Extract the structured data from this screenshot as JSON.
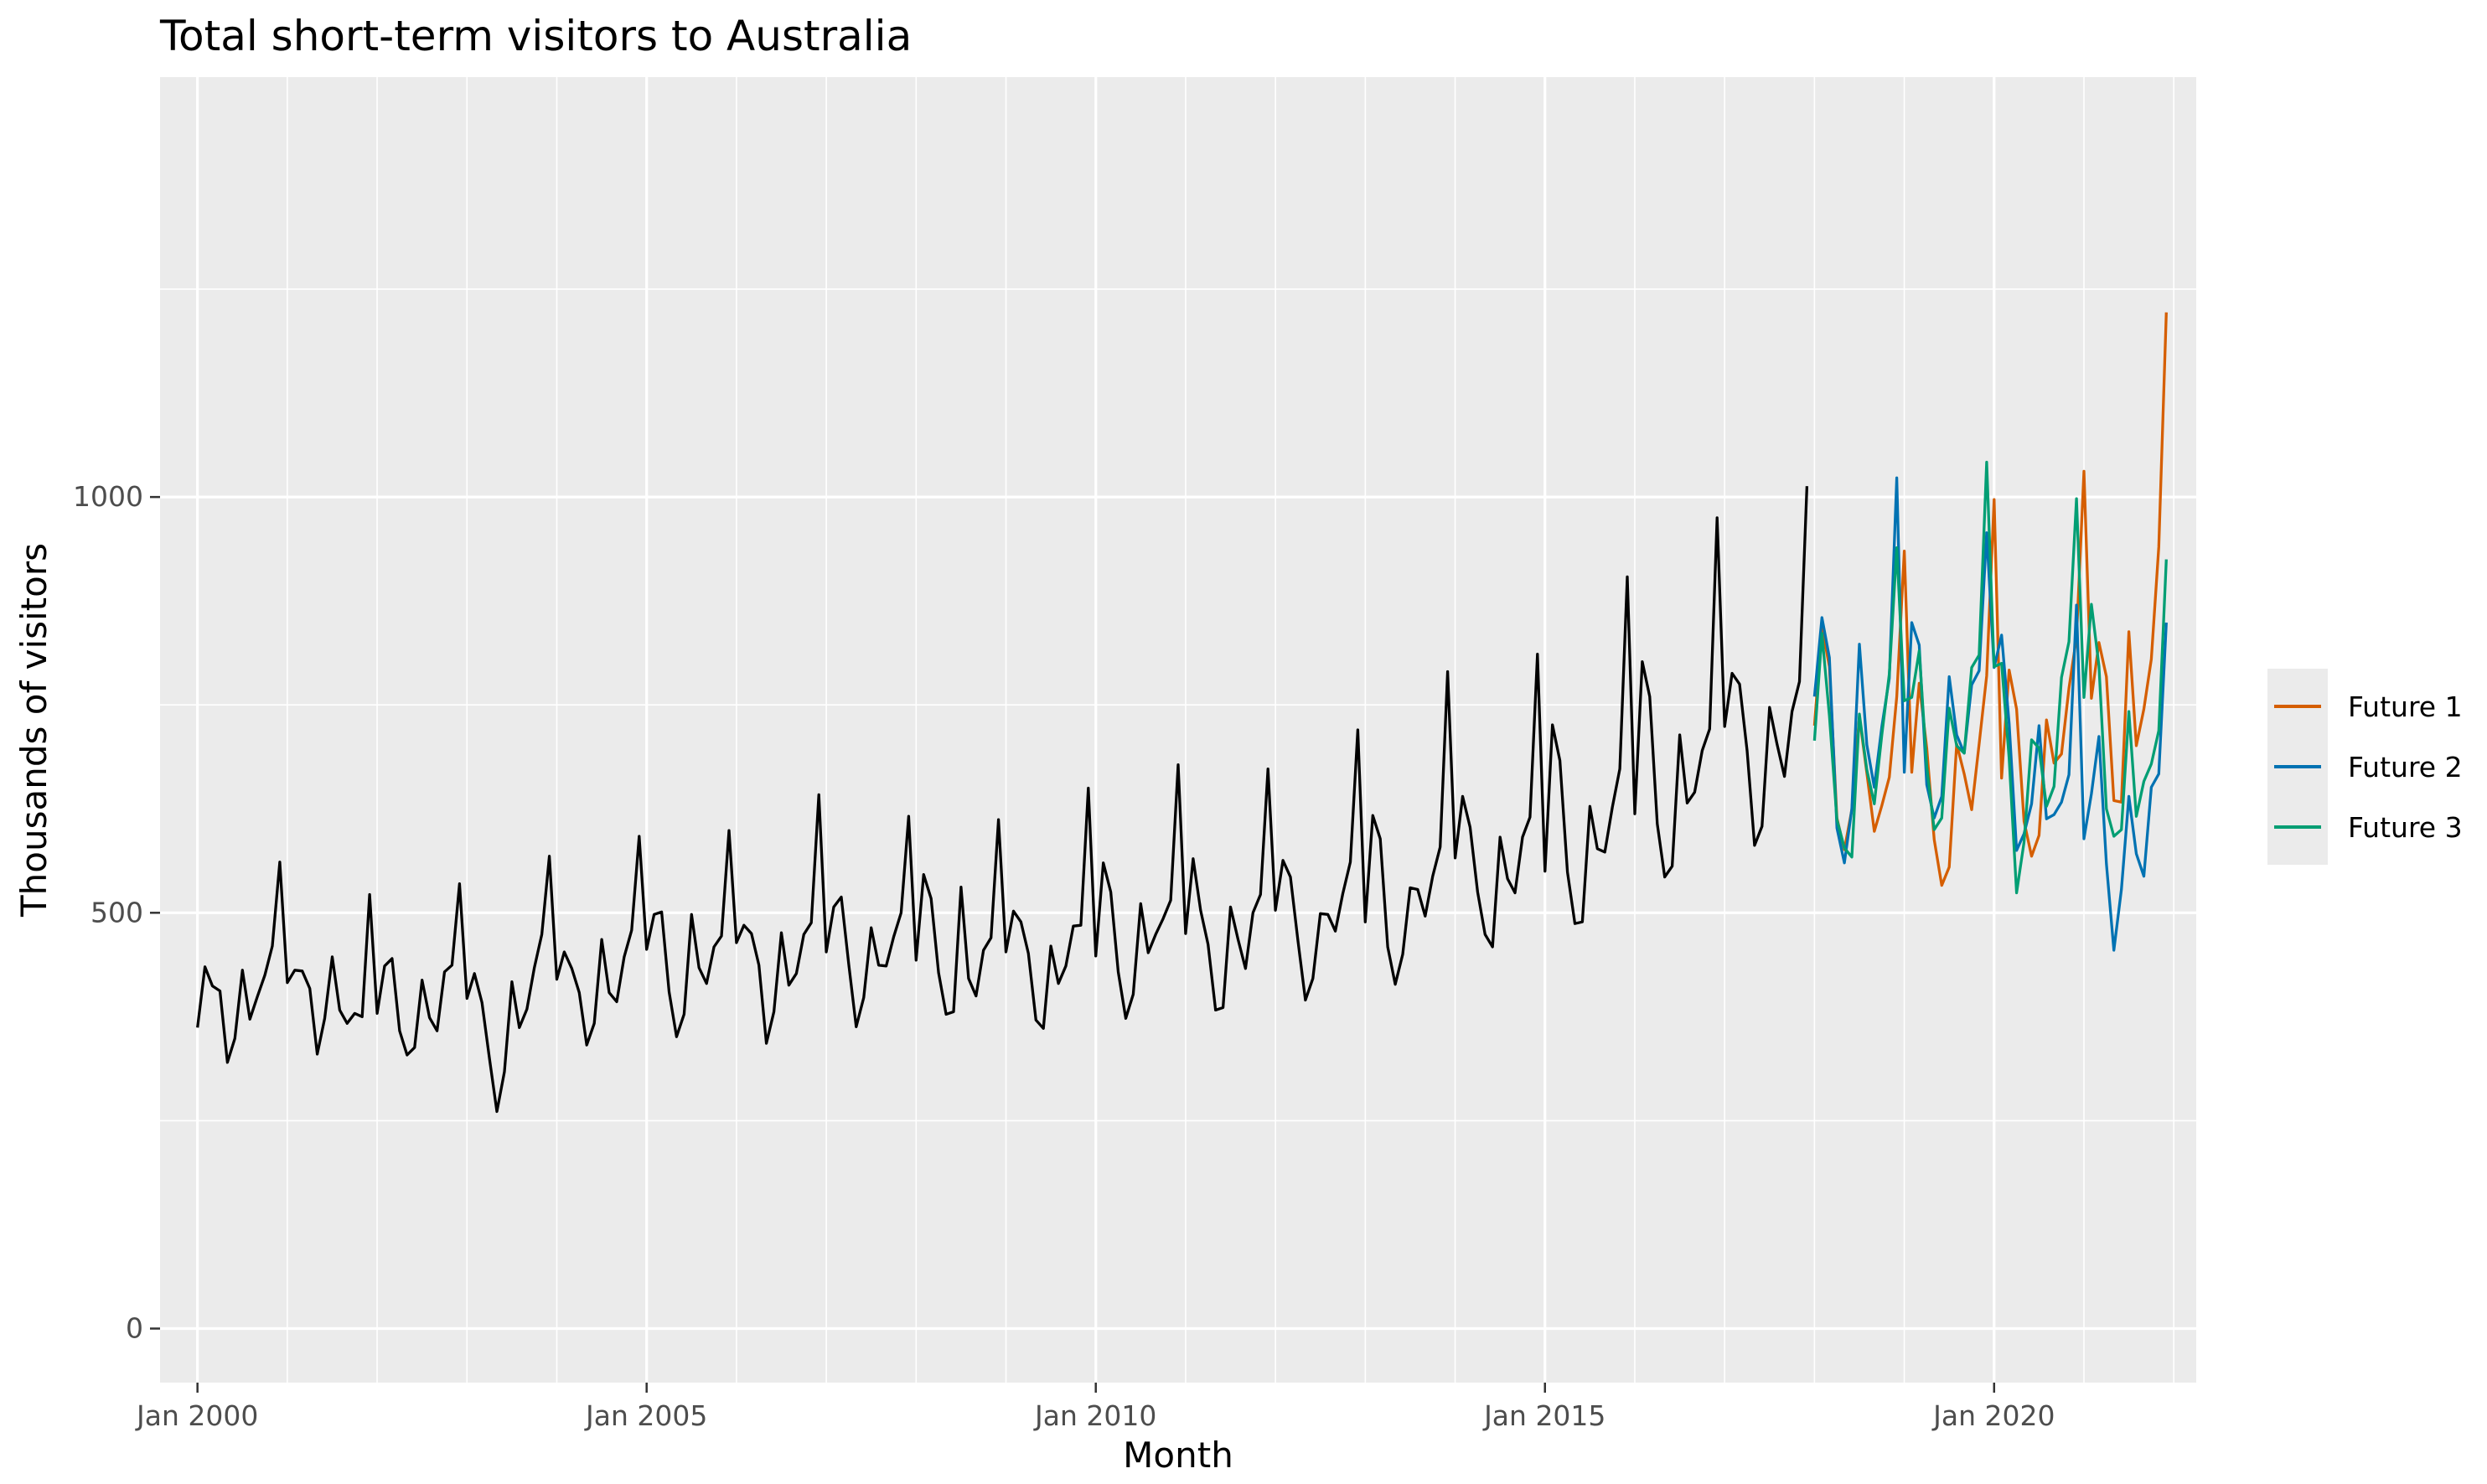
{
  "chart_data": {
    "type": "line",
    "title": "Total short-term visitors to Australia",
    "xlabel": "Month",
    "ylabel": "Thousands of visitors",
    "xlim": [
      "1999-08",
      "2022-04"
    ],
    "ylim": [
      -65,
      1505
    ],
    "grid": true,
    "legend_position": "right",
    "x_ticks": [
      {
        "label": "Jan 2000",
        "value": "2000-01"
      },
      {
        "label": "Jan 2005",
        "value": "2005-01"
      },
      {
        "label": "Jan 2010",
        "value": "2010-01"
      },
      {
        "label": "Jan 2015",
        "value": "2015-01"
      },
      {
        "label": "Jan 2020",
        "value": "2020-01"
      }
    ],
    "y_ticks": [
      0,
      500,
      1000
    ],
    "observed": {
      "start": "2000-01",
      "color": "#000000",
      "values": [
        362,
        435,
        412,
        406,
        320,
        349,
        431,
        372,
        399,
        425,
        460,
        561,
        416,
        431,
        430,
        409,
        330,
        373,
        447,
        383,
        367,
        379,
        375,
        522,
        379,
        436,
        445,
        358,
        329,
        338,
        419,
        374,
        358,
        429,
        437,
        535,
        397,
        427,
        392,
        325,
        261,
        309,
        417,
        362,
        384,
        434,
        474,
        568,
        420,
        453,
        433,
        404,
        341,
        367,
        468,
        404,
        393,
        447,
        479,
        592,
        456,
        498,
        501,
        405,
        351,
        378,
        498,
        434,
        415,
        459,
        472,
        599,
        464,
        485,
        475,
        437,
        343,
        381,
        476,
        413,
        427,
        474,
        488,
        642,
        453,
        507,
        519,
        438,
        363,
        398,
        482,
        437,
        436,
        471,
        500,
        616,
        443,
        546,
        517,
        428,
        378,
        381,
        531,
        421,
        400,
        455,
        470,
        612,
        453,
        502,
        489,
        451,
        371,
        361,
        460,
        415,
        436,
        484,
        485,
        650,
        448,
        560,
        525,
        429,
        373,
        402,
        511,
        452,
        474,
        493,
        515,
        678,
        475,
        565,
        503,
        462,
        383,
        386,
        507,
        468,
        433,
        500,
        522,
        673,
        503,
        563,
        543,
        467,
        395,
        421,
        499,
        498,
        478,
        523,
        561,
        720,
        489,
        617,
        589,
        459,
        414,
        450,
        530,
        528,
        496,
        544,
        579,
        790,
        566,
        640,
        603,
        525,
        474,
        459,
        591,
        541,
        524,
        591,
        615,
        811,
        550,
        726,
        683,
        549,
        487,
        489,
        628,
        577,
        573,
        627,
        673,
        904,
        619,
        802,
        760,
        607,
        543,
        556,
        714,
        632,
        645,
        695,
        721,
        975,
        724,
        788,
        775,
        695,
        581,
        604,
        747,
        703,
        664,
        742,
        778,
        1013
      ]
    },
    "futures_start": "2018-01",
    "series": [
      {
        "name": "Future 1",
        "color": "#D55E00",
        "values": [
          725,
          844,
          796,
          614,
          576,
          624,
          736,
          668,
          598,
          629,
          663,
          760,
          935,
          669,
          776,
          698,
          588,
          533,
          555,
          703,
          667,
          624,
          703,
          785,
          997,
          662,
          792,
          745,
          610,
          568,
          593,
          732,
          680,
          691,
          770,
          831,
          1031,
          758,
          825,
          784,
          635,
          633,
          838,
          701,
          745,
          805,
          940,
          1222
        ]
      },
      {
        "name": "Future 2",
        "color": "#0072B2",
        "values": [
          760,
          855,
          807,
          602,
          560,
          625,
          823,
          702,
          651,
          724,
          782,
          1023,
          669,
          849,
          822,
          654,
          614,
          640,
          784,
          714,
          692,
          774,
          791,
          957,
          795,
          834,
          728,
          575,
          595,
          631,
          725,
          613,
          618,
          633,
          666,
          870,
          589,
          643,
          712,
          559,
          455,
          528,
          640,
          571,
          544,
          651,
          667,
          849
        ]
      },
      {
        "name": "Future 3",
        "color": "#009E73",
        "values": [
          707,
          836,
          737,
          612,
          578,
          567,
          739,
          672,
          631,
          714,
          787,
          939,
          755,
          759,
          815,
          676,
          600,
          614,
          746,
          701,
          692,
          795,
          810,
          1042,
          796,
          800,
          686,
          524,
          585,
          708,
          698,
          628,
          652,
          783,
          826,
          998,
          759,
          871,
          797,
          625,
          592,
          600,
          742,
          616,
          658,
          679,
          719,
          925
        ]
      }
    ]
  }
}
